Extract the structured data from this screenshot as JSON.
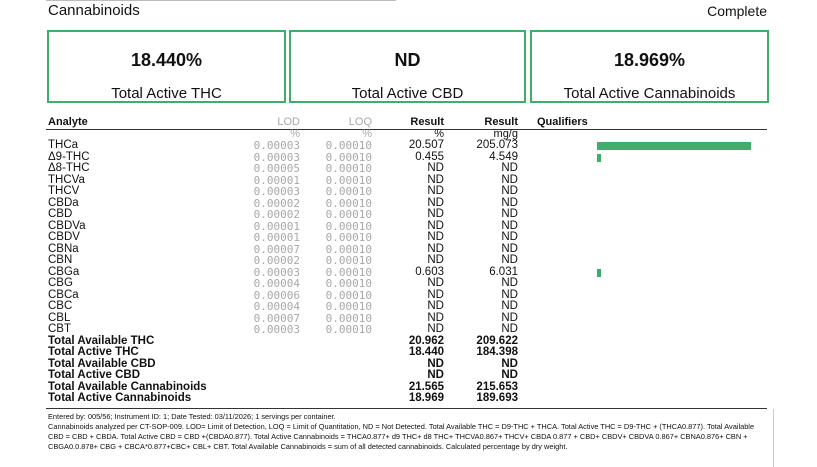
{
  "section_title": "Cannabinoids",
  "status": "Complete",
  "summary": [
    {
      "value": "18.440%",
      "label": "Total Active THC"
    },
    {
      "value": "ND",
      "label": "Total Active CBD"
    },
    {
      "value": "18.969%",
      "label": "Total Active Cannabinoids"
    }
  ],
  "table": {
    "headers": {
      "analyte": "Analyte",
      "lod": "LOD",
      "loq": "LOQ",
      "result_pct": "Result",
      "result_mg": "Result",
      "qualifiers": "Qualifiers"
    },
    "units": {
      "lod": "%",
      "loq": "%",
      "result_pct": "%",
      "result_mg": "mg/g"
    },
    "rows": [
      {
        "name": "THCa",
        "lod": "0.00003",
        "loq": "0.00010",
        "pct": "20.507",
        "mg": "205.073",
        "bar": 0.9
      },
      {
        "name": "Δ9-THC",
        "lod": "0.00003",
        "loq": "0.00010",
        "pct": "0.455",
        "mg": "4.549",
        "bar": 0.02
      },
      {
        "name": "Δ8-THC",
        "lod": "0.00005",
        "loq": "0.00010",
        "pct": "ND",
        "mg": "ND",
        "bar": 0
      },
      {
        "name": "THCVa",
        "lod": "0.00001",
        "loq": "0.00010",
        "pct": "ND",
        "mg": "ND",
        "bar": 0
      },
      {
        "name": "THCV",
        "lod": "0.00003",
        "loq": "0.00010",
        "pct": "ND",
        "mg": "ND",
        "bar": 0
      },
      {
        "name": "CBDa",
        "lod": "0.00002",
        "loq": "0.00010",
        "pct": "ND",
        "mg": "ND",
        "bar": 0
      },
      {
        "name": "CBD",
        "lod": "0.00002",
        "loq": "0.00010",
        "pct": "ND",
        "mg": "ND",
        "bar": 0
      },
      {
        "name": "CBDVa",
        "lod": "0.00001",
        "loq": "0.00010",
        "pct": "ND",
        "mg": "ND",
        "bar": 0
      },
      {
        "name": "CBDV",
        "lod": "0.00001",
        "loq": "0.00010",
        "pct": "ND",
        "mg": "ND",
        "bar": 0
      },
      {
        "name": "CBNa",
        "lod": "0.00007",
        "loq": "0.00010",
        "pct": "ND",
        "mg": "ND",
        "bar": 0
      },
      {
        "name": "CBN",
        "lod": "0.00002",
        "loq": "0.00010",
        "pct": "ND",
        "mg": "ND",
        "bar": 0
      },
      {
        "name": "CBGa",
        "lod": "0.00003",
        "loq": "0.00010",
        "pct": "0.603",
        "mg": "6.031",
        "bar": 0.02
      },
      {
        "name": "CBG",
        "lod": "0.00004",
        "loq": "0.00010",
        "pct": "ND",
        "mg": "ND",
        "bar": 0
      },
      {
        "name": "CBCa",
        "lod": "0.00006",
        "loq": "0.00010",
        "pct": "ND",
        "mg": "ND",
        "bar": 0
      },
      {
        "name": "CBC",
        "lod": "0.00004",
        "loq": "0.00010",
        "pct": "ND",
        "mg": "ND",
        "bar": 0
      },
      {
        "name": "CBL",
        "lod": "0.00007",
        "loq": "0.00010",
        "pct": "ND",
        "mg": "ND",
        "bar": 0
      },
      {
        "name": "CBT",
        "lod": "0.00003",
        "loq": "0.00010",
        "pct": "ND",
        "mg": "ND",
        "bar": 0
      }
    ],
    "totals": [
      {
        "name": "Total Available THC",
        "pct": "20.962",
        "mg": "209.622"
      },
      {
        "name": "Total Active THC",
        "pct": "18.440",
        "mg": "184.398"
      },
      {
        "name": "Total Available CBD",
        "pct": "ND",
        "mg": "ND"
      },
      {
        "name": "Total Active CBD",
        "pct": "ND",
        "mg": "ND"
      },
      {
        "name": "Total Available Cannabinoids",
        "pct": "21.565",
        "mg": "215.653"
      },
      {
        "name": "Total Active Cannabinoids",
        "pct": "18.969",
        "mg": "189.693"
      }
    ]
  },
  "footnote": {
    "line1": "Entered by: 005/56; Instrument ID: 1; Date Tested: 03/11/2026; 1 servings per container.",
    "line2": "Cannabinoids analyzed per CT-SOP-009. LOD= Limit of Detection, LOQ = Limit of Quantitation, ND = Not Detected. Total Available THC = D9-THC + THCA. Total Active THC = D9-THC + (THCA0.877). Total Available CBD = CBD + CBDA. Total Active CBD = CBD +(CBDA0.877). Total Active Cannabinoids = THCA0.877+ d9 THC+ d8 THC+ THCVA0.867+ THCV+ CBDA 0.877 + CBD+ CBDV+ CBDVA 0.867+ CBNA0.876+ CBN + CBGA0.0.878+ CBG + CBCA*0.877+CBC+ CBL+ CBT. Total Available Cannabinoids = sum of all detected cannabinoids. Calculated percentage by dry weight."
  },
  "colors": {
    "accent": "#3fae6a"
  }
}
